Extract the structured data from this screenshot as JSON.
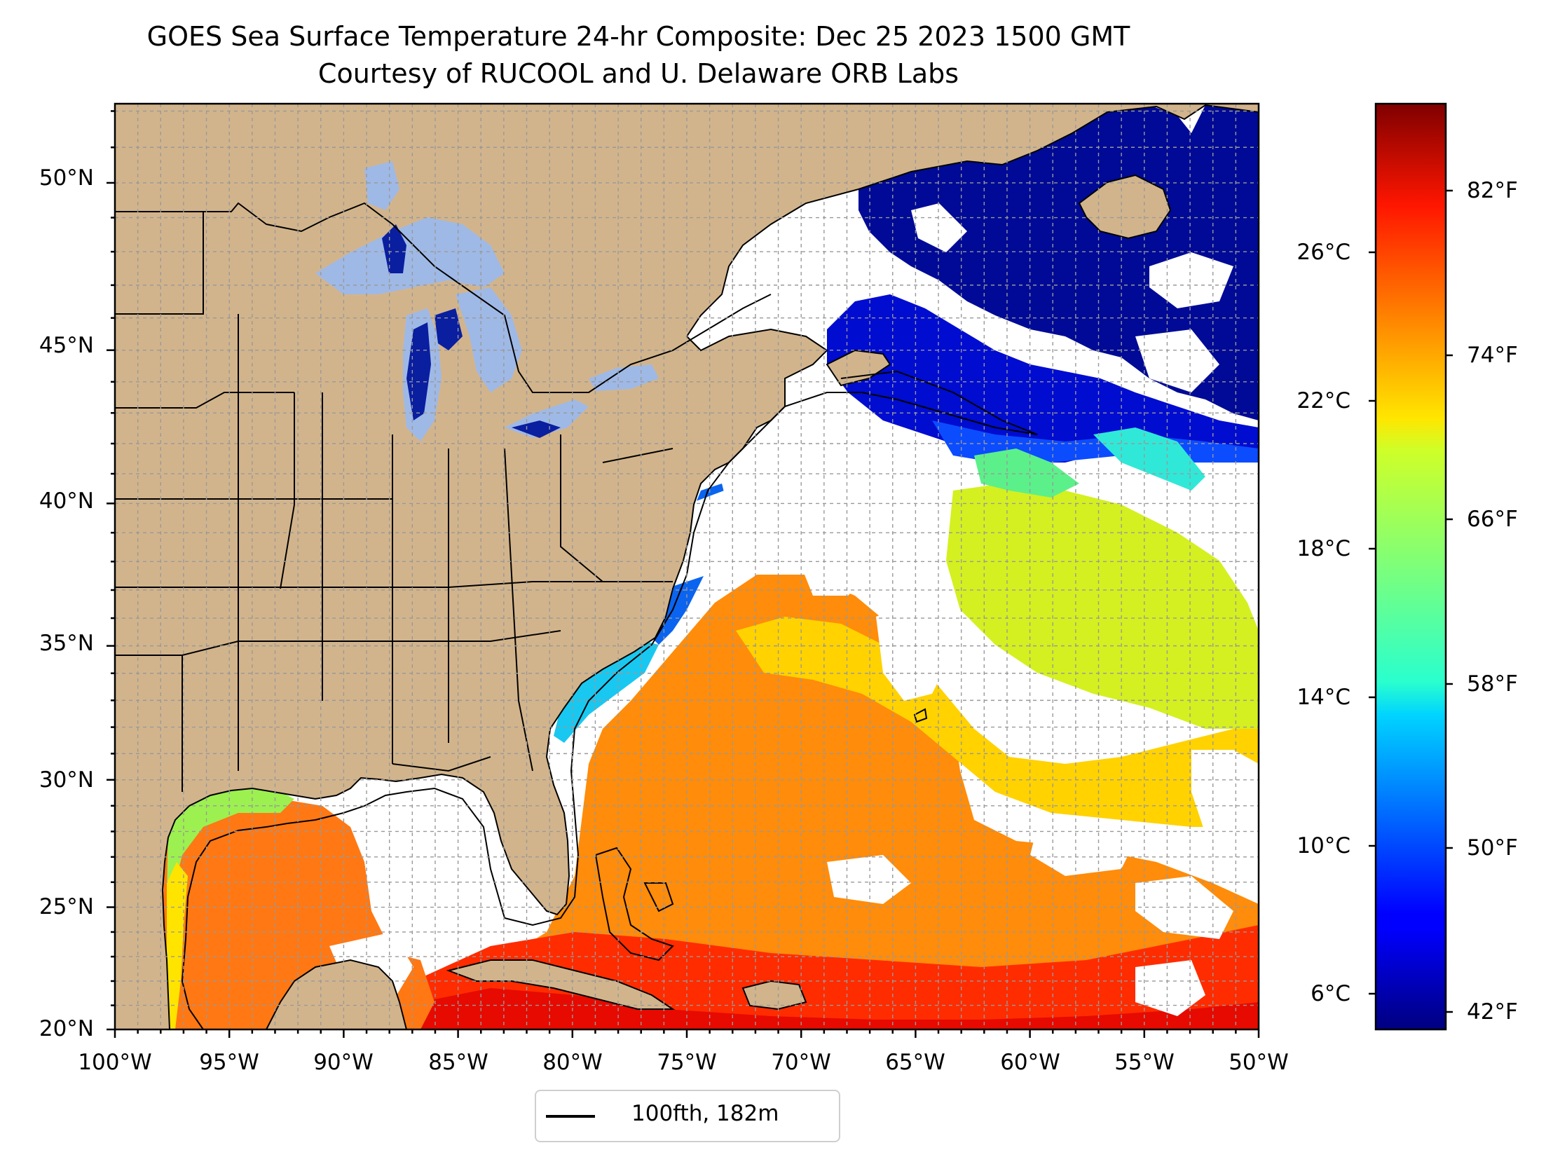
{
  "title": {
    "line1": "GOES Sea Surface Temperature 24-hr Composite: Dec 25 2023 1500 GMT",
    "line2": "Courtesy of RUCOOL and U. Delaware ORB Labs"
  },
  "map": {
    "extent": {
      "lon_min": -100,
      "lon_max": -50,
      "lat_min": 20,
      "lat_max": 52.2
    },
    "gridlines": true,
    "land_color": "#d2b48c",
    "lake_color": "#9fb9e6",
    "no_data_color": "#ffffff",
    "lat_ticks": [
      "50°N",
      "45°N",
      "40°N",
      "35°N",
      "30°N",
      "25°N",
      "20°N"
    ],
    "lon_ticks": [
      "100°W",
      "95°W",
      "90°W",
      "85°W",
      "80°W",
      "75°W",
      "70°W",
      "65°W",
      "60°W",
      "55°W",
      "50°W"
    ]
  },
  "colorbar": {
    "colormap": "jet",
    "celsius_ticks": [
      "26°C",
      "22°C",
      "18°C",
      "14°C",
      "10°C",
      "6°C"
    ],
    "fahrenheit_ticks": [
      "82°F",
      "74°F",
      "66°F",
      "58°F",
      "50°F",
      "42°F"
    ]
  },
  "legend": {
    "label": "100fth, 182m",
    "color": "#000000"
  }
}
